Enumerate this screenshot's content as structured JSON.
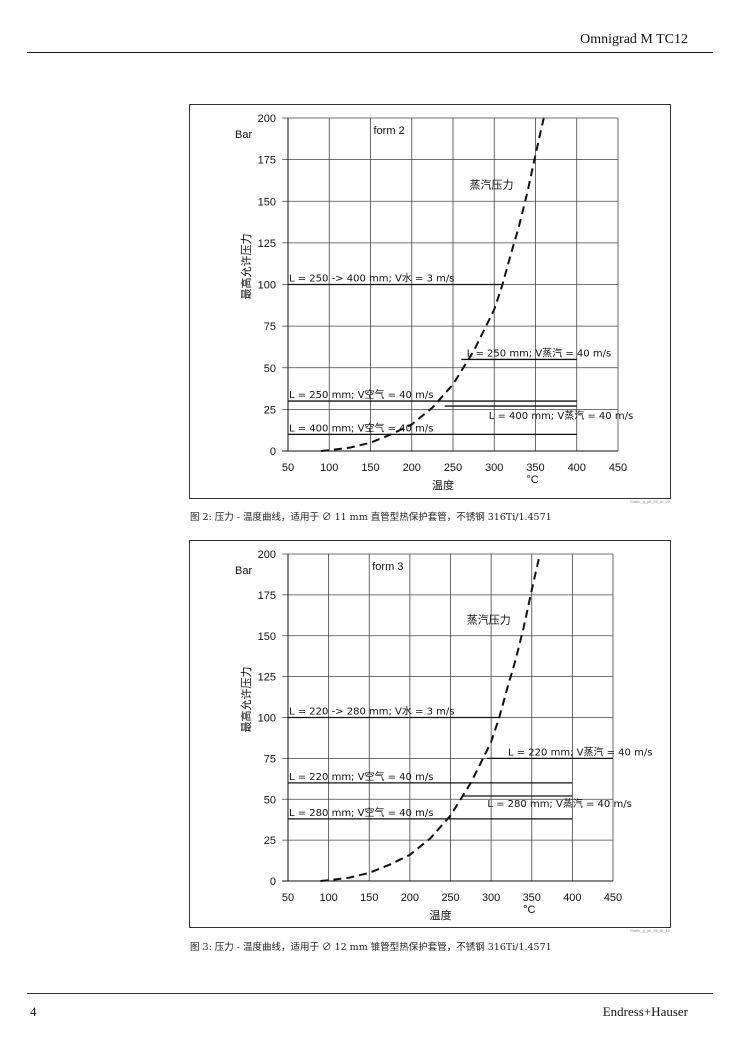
{
  "header": {
    "title": "Omnigrad M TC12"
  },
  "footer": {
    "page_number": "4",
    "brand": "Endress+Hauser"
  },
  "figures": [
    {
      "caption": "图 2: 压力 - 温度曲线，适用于 ∅ 11 mm 直管型热保护套管，不锈钢 316Ti/1.4571",
      "credit": "Grafic_g_pll_05_th_00",
      "chart_data": {
        "type": "line",
        "title": "",
        "form_label": "form 2",
        "ylabel": "最高允许压力",
        "yunit": "Bar",
        "xlabel": "温度",
        "xunit": "°C",
        "xlim": [
          50,
          450
        ],
        "ylim": [
          0,
          200
        ],
        "x_ticks": [
          50,
          100,
          150,
          200,
          250,
          300,
          350,
          400,
          450
        ],
        "y_ticks": [
          0,
          25,
          50,
          75,
          100,
          125,
          150,
          175,
          200
        ],
        "grid": true,
        "curve_label": "蒸汽压力",
        "curve": {
          "style": "dashed",
          "x": [
            90,
            100,
            125,
            150,
            175,
            200,
            225,
            250,
            275,
            300,
            310,
            320,
            330,
            340,
            350,
            360
          ],
          "y": [
            0,
            0.5,
            2,
            5,
            10,
            16,
            26,
            40,
            60,
            85,
            100,
            118,
            135,
            155,
            178,
            200
          ]
        },
        "limit_lines": [
          {
            "label": "L = 250 -> 400 mm;   V水 = 3 m/s",
            "y": 100,
            "x_start": 50,
            "x_end": 310
          },
          {
            "label": "L = 250 mm; V蒸汽 = 40 m/s",
            "y": 55,
            "x_start": 260,
            "x_end": 400
          },
          {
            "label": "L = 250 mm;   V空气 = 40 m/s",
            "y": 30,
            "x_start": 50,
            "x_end": 400
          },
          {
            "label": "L = 400 mm; V蒸汽 = 40 m/s",
            "y": 27,
            "x_start": 240,
            "x_end": 400
          },
          {
            "label": "L = 400 mm; V空气 = 40 m/s",
            "y": 10,
            "x_start": 50,
            "x_end": 400
          }
        ]
      }
    },
    {
      "caption": "图 3: 压力 - 温度曲线，适用于 ∅ 12 mm 锥管型热保护套管，不锈钢 316Ti/1.4571",
      "credit": "Grafic_g_pll_05_th_10",
      "chart_data": {
        "type": "line",
        "title": "",
        "form_label": "form 3",
        "ylabel": "最高允许压力",
        "yunit": "Bar",
        "xlabel": "温度",
        "xunit": "°C",
        "xlim": [
          50,
          450
        ],
        "ylim": [
          0,
          200
        ],
        "x_ticks": [
          50,
          100,
          150,
          200,
          250,
          300,
          350,
          400,
          450
        ],
        "y_ticks": [
          0,
          25,
          50,
          75,
          100,
          125,
          150,
          175,
          200
        ],
        "grid": true,
        "curve_label": "蒸汽压力",
        "curve": {
          "style": "dashed",
          "x": [
            90,
            100,
            125,
            150,
            175,
            200,
            225,
            250,
            275,
            300,
            310,
            320,
            330,
            340,
            350,
            360
          ],
          "y": [
            0,
            0.5,
            2,
            5,
            10,
            16,
            26,
            40,
            60,
            85,
            100,
            118,
            135,
            155,
            178,
            200
          ]
        },
        "limit_lines": [
          {
            "label": "L = 220 -> 280 mm;   V水 = 3 m/s",
            "y": 100,
            "x_start": 50,
            "x_end": 310
          },
          {
            "label": "L = 220 mm; V蒸汽 = 40 m/s",
            "y": 75,
            "x_start": 295,
            "x_end": 450
          },
          {
            "label": "L = 220 mm;   V空气 = 40 m/s",
            "y": 60,
            "x_start": 50,
            "x_end": 400
          },
          {
            "label": "L = 280 mm; V蒸汽 = 40 m/s",
            "y": 52,
            "x_start": 265,
            "x_end": 400
          },
          {
            "label": "L = 280 mm;   V空气 = 40 m/s",
            "y": 38,
            "x_start": 50,
            "x_end": 400
          }
        ]
      }
    }
  ]
}
